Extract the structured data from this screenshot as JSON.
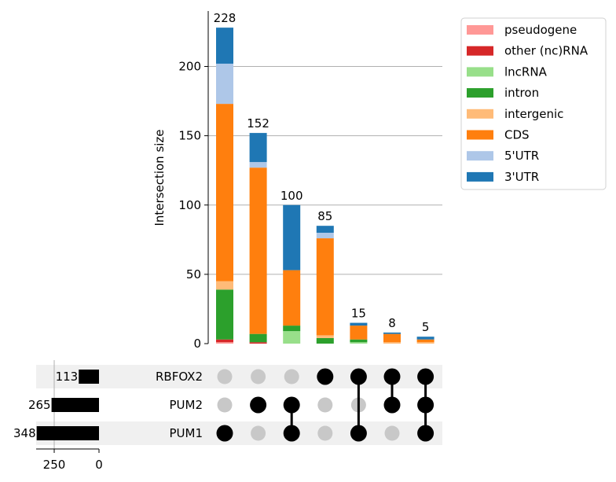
{
  "chart_data": {
    "type": "upset",
    "ylabel": "Intersection size",
    "ylim": [
      0,
      240
    ],
    "yticks": [
      0,
      50,
      100,
      150,
      200
    ],
    "grid": true,
    "legend_placement": "top-right outside",
    "categories": [
      "pseudogene",
      "other (nc)RNA",
      "lncRNA",
      "intron",
      "intergenic",
      "CDS",
      "5'UTR",
      "3'UTR"
    ],
    "colors": [
      "#ff9896",
      "#d62728",
      "#98df8a",
      "#2ca02c",
      "#ffbb78",
      "#ff7f0e",
      "#aec7e8",
      "#1f77b4"
    ],
    "sets": [
      {
        "name": "RBFOX2",
        "size": 113
      },
      {
        "name": "PUM2",
        "size": 265
      },
      {
        "name": "PUM1",
        "size": 348
      }
    ],
    "set_size_ticks": [
      250,
      0
    ],
    "intersections": [
      {
        "total": 228,
        "members": [
          "PUM1"
        ],
        "values": [
          1,
          2,
          0,
          36,
          6,
          128,
          29,
          26
        ]
      },
      {
        "total": 152,
        "members": [
          "PUM2"
        ],
        "values": [
          0,
          1,
          0,
          6,
          0,
          120,
          4,
          21
        ]
      },
      {
        "total": 100,
        "members": [
          "PUM2",
          "PUM1"
        ],
        "values": [
          0,
          0,
          9,
          4,
          0,
          40,
          0,
          47
        ]
      },
      {
        "total": 85,
        "members": [
          "RBFOX2"
        ],
        "values": [
          0,
          0,
          0,
          4,
          2,
          70,
          4,
          5
        ]
      },
      {
        "total": 15,
        "members": [
          "RBFOX2",
          "PUM1"
        ],
        "values": [
          0,
          0,
          1,
          2,
          0,
          10,
          0,
          2
        ]
      },
      {
        "total": 8,
        "members": [
          "RBFOX2",
          "PUM2"
        ],
        "values": [
          0,
          0,
          0,
          0,
          1,
          6,
          0,
          1
        ]
      },
      {
        "total": 5,
        "members": [
          "RBFOX2",
          "PUM2",
          "PUM1"
        ],
        "values": [
          0,
          0,
          0,
          0,
          1,
          2,
          0,
          2
        ]
      }
    ]
  }
}
